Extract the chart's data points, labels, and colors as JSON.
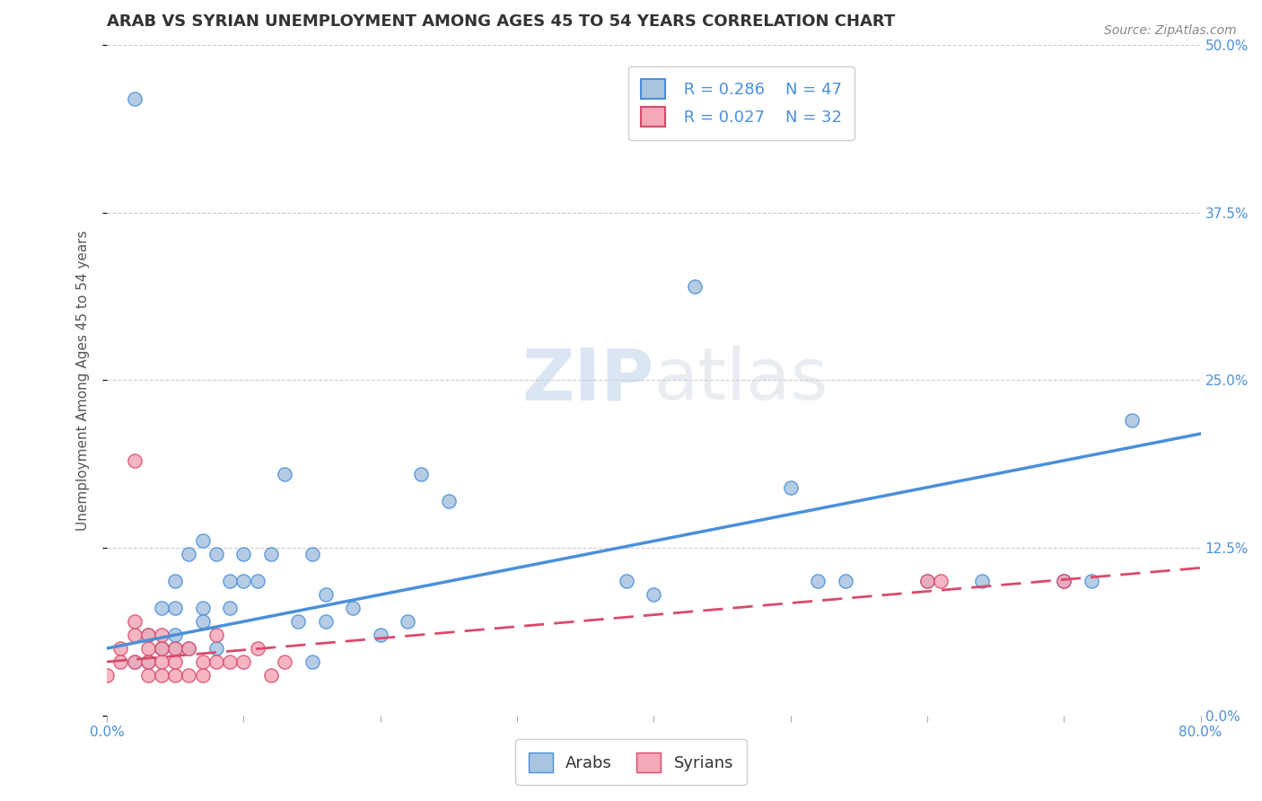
{
  "title": "ARAB VS SYRIAN UNEMPLOYMENT AMONG AGES 45 TO 54 YEARS CORRELATION CHART",
  "source": "Source: ZipAtlas.com",
  "ylabel": "Unemployment Among Ages 45 to 54 years",
  "xlabel": "",
  "xlim": [
    0.0,
    0.8
  ],
  "ylim": [
    0.0,
    0.5
  ],
  "xticks": [
    0.0,
    0.1,
    0.2,
    0.3,
    0.4,
    0.5,
    0.6,
    0.7,
    0.8
  ],
  "yticks": [
    0.0,
    0.125,
    0.25,
    0.375,
    0.5
  ],
  "ytick_labels": [
    "0.0%",
    "12.5%",
    "25.0%",
    "37.5%",
    "50.0%"
  ],
  "xtick_labels": [
    "0.0%",
    "",
    "",
    "",
    "",
    "",
    "",
    "",
    "80.0%"
  ],
  "background_color": "#ffffff",
  "grid_color": "#cccccc",
  "watermark_zip": "ZIP",
  "watermark_atlas": "atlas",
  "legend_R_arab": "R = 0.286",
  "legend_N_arab": "N = 47",
  "legend_R_syrian": "R = 0.027",
  "legend_N_syrian": "N = 32",
  "arab_color": "#a8c4e0",
  "arab_line_color": "#4a90d9",
  "syrian_color": "#f4a8b8",
  "syrian_line_color": "#d94a6a",
  "arab_scatter_x": [
    0.02,
    0.02,
    0.03,
    0.03,
    0.04,
    0.04,
    0.04,
    0.05,
    0.05,
    0.05,
    0.05,
    0.06,
    0.06,
    0.07,
    0.07,
    0.07,
    0.08,
    0.08,
    0.09,
    0.09,
    0.1,
    0.1,
    0.11,
    0.12,
    0.13,
    0.14,
    0.15,
    0.15,
    0.16,
    0.16,
    0.18,
    0.2,
    0.22,
    0.23,
    0.25,
    0.38,
    0.4,
    0.43,
    0.5,
    0.52,
    0.54,
    0.6,
    0.64,
    0.7,
    0.7,
    0.72,
    0.75
  ],
  "arab_scatter_y": [
    0.46,
    0.04,
    0.06,
    0.04,
    0.05,
    0.05,
    0.08,
    0.06,
    0.05,
    0.08,
    0.1,
    0.12,
    0.05,
    0.13,
    0.08,
    0.07,
    0.12,
    0.05,
    0.1,
    0.08,
    0.12,
    0.1,
    0.1,
    0.12,
    0.18,
    0.07,
    0.12,
    0.04,
    0.07,
    0.09,
    0.08,
    0.06,
    0.07,
    0.18,
    0.16,
    0.1,
    0.09,
    0.32,
    0.17,
    0.1,
    0.1,
    0.1,
    0.1,
    0.1,
    0.1,
    0.1,
    0.22
  ],
  "syrian_scatter_x": [
    0.0,
    0.01,
    0.01,
    0.02,
    0.02,
    0.02,
    0.02,
    0.03,
    0.03,
    0.03,
    0.03,
    0.04,
    0.04,
    0.04,
    0.04,
    0.05,
    0.05,
    0.05,
    0.06,
    0.06,
    0.07,
    0.07,
    0.08,
    0.08,
    0.09,
    0.1,
    0.11,
    0.12,
    0.13,
    0.6,
    0.61,
    0.7
  ],
  "syrian_scatter_y": [
    0.03,
    0.05,
    0.04,
    0.04,
    0.06,
    0.07,
    0.19,
    0.03,
    0.04,
    0.05,
    0.06,
    0.03,
    0.04,
    0.05,
    0.06,
    0.03,
    0.04,
    0.05,
    0.03,
    0.05,
    0.04,
    0.03,
    0.04,
    0.06,
    0.04,
    0.04,
    0.05,
    0.03,
    0.04,
    0.1,
    0.1,
    0.1
  ],
  "arab_trend_x": [
    0.0,
    0.8
  ],
  "arab_trend_y": [
    0.05,
    0.21
  ],
  "syrian_trend_x": [
    0.0,
    0.8
  ],
  "syrian_trend_y": [
    0.04,
    0.11
  ],
  "title_fontsize": 13,
  "axis_label_fontsize": 11,
  "tick_fontsize": 11,
  "legend_fontsize": 13,
  "source_fontsize": 10
}
